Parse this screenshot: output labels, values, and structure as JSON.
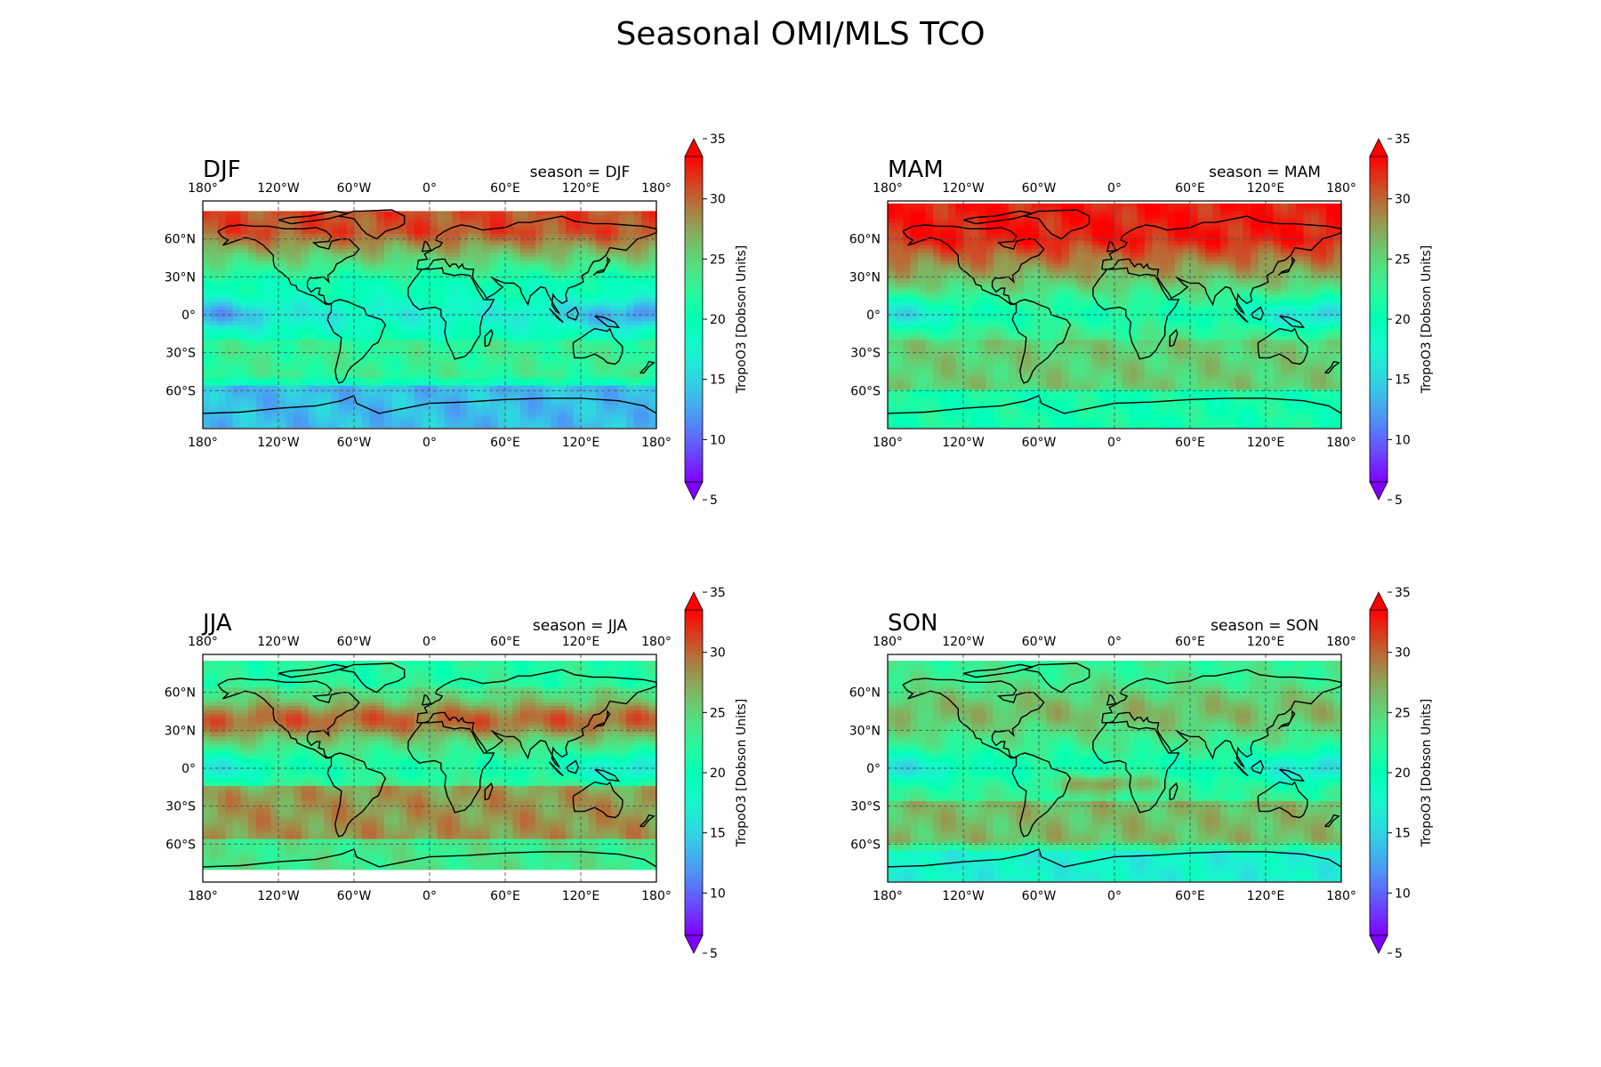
{
  "figure": {
    "title": "Seasonal OMI/MLS TCO"
  },
  "colorbar": {
    "label": "TropoO3 [Dobson Units]",
    "min": 5,
    "max": 35,
    "ticks": [
      "5",
      "10",
      "15",
      "20",
      "25",
      "30",
      "35"
    ],
    "colormap": "rainbow",
    "extend": "both"
  },
  "axes": {
    "lon_ticks": [
      "180°",
      "120°W",
      "60°W",
      "0°",
      "60°E",
      "120°E",
      "180°"
    ],
    "lat_ticks": [
      "60°N",
      "30°N",
      "0°",
      "30°S",
      "60°S"
    ],
    "gridlines": "dashed"
  },
  "panels": [
    {
      "label": "DJF",
      "subtitle": "season = DJF"
    },
    {
      "label": "MAM",
      "subtitle": "season = MAM"
    },
    {
      "label": "JJA",
      "subtitle": "season = JJA"
    },
    {
      "label": "SON",
      "subtitle": "season = SON"
    }
  ],
  "colors": {
    "coastline": "#000000",
    "gridline": "#555555",
    "missing": "#ffffff"
  }
}
